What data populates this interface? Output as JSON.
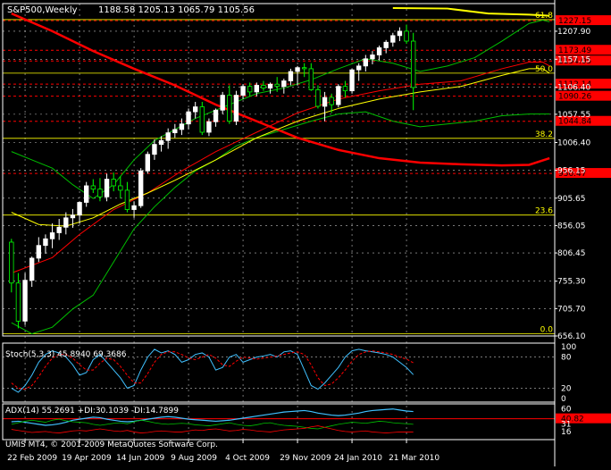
{
  "header": {
    "symbol": "S&P500,Weekly",
    "ohlc": "1188.58 1205.13 1065.79 1105.56"
  },
  "copyright": "UMIS MT4, © 2001-2009 MetaQuotes Software Corp.",
  "colors": {
    "background": "#000000",
    "grid": "#c0c0c0",
    "bull": "#ffffff",
    "bear": "#00ff00",
    "sma_red": "#ff0000",
    "sma_yellow": "#ffff00",
    "bands": "#00c000",
    "fib": "#ffff00",
    "level_line": "#ff0000",
    "price_tag_bg": "#ff0000",
    "stoch_main": "#40c0ff",
    "stoch_signal": "#ff0000",
    "adx": "#40c0ff"
  },
  "chart_data": [
    {
      "type": "candlestick",
      "panel": "main",
      "title": "S&P500,Weekly",
      "y_ticks": [
        "1207.90",
        "1157.15",
        "1106.40",
        "1057.55",
        "1006.40",
        "956.15",
        "905.65",
        "856.05",
        "806.45",
        "755.30",
        "705.70",
        "656.10"
      ],
      "ylim": [
        656.1,
        1258
      ],
      "x_ticks": [
        "22 Feb 2009",
        "19 Apr 2009",
        "14 Jun 2009",
        "9 Aug 2009",
        "4 Oct 2009",
        "29 Nov 2009",
        "24 Jan 2010",
        "21 Mar 2010"
      ],
      "fib_levels": [
        {
          "label": "61.8",
          "value": 1229
        },
        {
          "label": "50.0",
          "value": 1132
        },
        {
          "label": "38.2",
          "value": 1014
        },
        {
          "label": "23.6",
          "value": 875
        },
        {
          "label": "0.0",
          "value": 660
        }
      ],
      "horizontal_levels": [
        {
          "label": "1227.15",
          "value": 1227.15
        },
        {
          "label": "1173.49",
          "value": 1173.49
        },
        {
          "label": "1154.05",
          "value": 1154.05
        },
        {
          "label": "1112.14",
          "value": 1112.14
        },
        {
          "label": "1090.26",
          "value": 1090.26
        },
        {
          "label": "1044.84",
          "value": 1044.84
        },
        {
          "label": "950.47",
          "value": 950.47
        }
      ],
      "candles": [
        [
          826,
          832,
          735,
          752
        ],
        [
          752,
          770,
          670,
          683
        ],
        [
          683,
          770,
          676,
          757
        ],
        [
          757,
          800,
          745,
          797
        ],
        [
          797,
          835,
          790,
          820
        ],
        [
          820,
          840,
          805,
          832
        ],
        [
          832,
          860,
          815,
          843
        ],
        [
          843,
          868,
          830,
          853
        ],
        [
          853,
          880,
          840,
          870
        ],
        [
          870,
          886,
          852,
          875
        ],
        [
          875,
          900,
          860,
          898
        ],
        [
          898,
          935,
          890,
          928
        ],
        [
          928,
          940,
          915,
          922
        ],
        [
          922,
          942,
          900,
          908
        ],
        [
          908,
          950,
          900,
          940
        ],
        [
          940,
          952,
          918,
          928
        ],
        [
          928,
          945,
          905,
          920
        ],
        [
          920,
          935,
          880,
          885
        ],
        [
          885,
          900,
          870,
          892
        ],
        [
          892,
          960,
          888,
          955
        ],
        [
          955,
          990,
          950,
          985
        ],
        [
          985,
          1012,
          975,
          1003
        ],
        [
          1003,
          1018,
          990,
          1010
        ],
        [
          1010,
          1032,
          995,
          1024
        ],
        [
          1024,
          1040,
          1015,
          1030
        ],
        [
          1030,
          1050,
          1020,
          1040
        ],
        [
          1040,
          1068,
          1030,
          1062
        ],
        [
          1062,
          1080,
          1050,
          1071
        ],
        [
          1071,
          1080,
          1020,
          1025
        ],
        [
          1025,
          1050,
          1018,
          1044
        ],
        [
          1044,
          1068,
          1035,
          1065
        ],
        [
          1065,
          1098,
          1058,
          1092
        ],
        [
          1092,
          1110,
          1040,
          1045
        ],
        [
          1045,
          1100,
          1038,
          1092
        ],
        [
          1092,
          1112,
          1085,
          1108
        ],
        [
          1108,
          1115,
          1090,
          1098
        ],
        [
          1098,
          1115,
          1090,
          1110
        ],
        [
          1110,
          1118,
          1100,
          1105
        ],
        [
          1105,
          1115,
          1095,
          1112
        ],
        [
          1112,
          1125,
          1098,
          1108
        ],
        [
          1108,
          1122,
          1095,
          1118
        ],
        [
          1118,
          1140,
          1110,
          1135
        ],
        [
          1135,
          1145,
          1110,
          1142
        ],
        [
          1142,
          1150,
          1125,
          1140
        ],
        [
          1140,
          1150,
          1100,
          1102
        ],
        [
          1102,
          1110,
          1068,
          1072
        ],
        [
          1072,
          1098,
          1045,
          1088
        ],
        [
          1088,
          1095,
          1060,
          1075
        ],
        [
          1075,
          1112,
          1070,
          1108
        ],
        [
          1108,
          1118,
          1088,
          1100
        ],
        [
          1100,
          1140,
          1095,
          1138
        ],
        [
          1138,
          1150,
          1118,
          1145
        ],
        [
          1145,
          1165,
          1135,
          1158
        ],
        [
          1158,
          1172,
          1148,
          1165
        ],
        [
          1165,
          1182,
          1155,
          1178
        ],
        [
          1178,
          1192,
          1168,
          1188
        ],
        [
          1188,
          1205,
          1180,
          1200
        ],
        [
          1200,
          1215,
          1190,
          1208
        ],
        [
          1208,
          1220,
          1185,
          1190
        ],
        [
          1190,
          1205,
          1065,
          1106
        ]
      ],
      "sma_red_long": [
        [
          0,
          1240
        ],
        [
          6,
          1208
        ],
        [
          12,
          1172
        ],
        [
          18,
          1140
        ],
        [
          24,
          1110
        ],
        [
          30,
          1075
        ],
        [
          36,
          1045
        ],
        [
          42,
          1015
        ],
        [
          48,
          993
        ],
        [
          54,
          978
        ],
        [
          60,
          970
        ],
        [
          66,
          967
        ],
        [
          72,
          965
        ],
        [
          76,
          966
        ],
        [
          79,
          978
        ]
      ],
      "sma_red_short": [
        [
          0,
          770
        ],
        [
          6,
          798
        ],
        [
          10,
          840
        ],
        [
          15,
          885
        ],
        [
          20,
          915
        ],
        [
          25,
          955
        ],
        [
          30,
          990
        ],
        [
          36,
          1025
        ],
        [
          42,
          1060
        ],
        [
          48,
          1085
        ],
        [
          54,
          1100
        ],
        [
          60,
          1112
        ],
        [
          66,
          1118
        ],
        [
          72,
          1140
        ],
        [
          76,
          1152
        ],
        [
          78,
          1152
        ],
        [
          79,
          1145
        ]
      ],
      "sma_yellow": [
        [
          0,
          880
        ],
        [
          4,
          858
        ],
        [
          8,
          855
        ],
        [
          12,
          870
        ],
        [
          16,
          895
        ],
        [
          20,
          915
        ],
        [
          24,
          938
        ],
        [
          30,
          975
        ],
        [
          36,
          1015
        ],
        [
          42,
          1045
        ],
        [
          48,
          1068
        ],
        [
          54,
          1085
        ],
        [
          60,
          1098
        ],
        [
          66,
          1108
        ],
        [
          72,
          1128
        ],
        [
          76,
          1140
        ],
        [
          78,
          1140
        ],
        [
          79,
          1132
        ]
      ],
      "band_upper": [
        [
          0,
          990
        ],
        [
          3,
          975
        ],
        [
          6,
          960
        ],
        [
          9,
          930
        ],
        [
          12,
          905
        ],
        [
          15,
          930
        ],
        [
          18,
          975
        ],
        [
          21,
          1010
        ],
        [
          24,
          1030
        ],
        [
          27,
          1050
        ],
        [
          30,
          1065
        ],
        [
          33,
          1080
        ],
        [
          36,
          1095
        ],
        [
          40,
          1105
        ],
        [
          44,
          1120
        ],
        [
          48,
          1140
        ],
        [
          52,
          1158
        ],
        [
          56,
          1150
        ],
        [
          60,
          1135
        ],
        [
          64,
          1145
        ],
        [
          68,
          1160
        ],
        [
          72,
          1190
        ],
        [
          76,
          1222
        ],
        [
          78,
          1228
        ],
        [
          79,
          1225
        ]
      ],
      "band_lower": [
        [
          0,
          680
        ],
        [
          3,
          660
        ],
        [
          6,
          672
        ],
        [
          9,
          705
        ],
        [
          12,
          730
        ],
        [
          15,
          790
        ],
        [
          18,
          850
        ],
        [
          21,
          890
        ],
        [
          24,
          925
        ],
        [
          27,
          955
        ],
        [
          30,
          975
        ],
        [
          33,
          1000
        ],
        [
          36,
          1015
        ],
        [
          40,
          1030
        ],
        [
          44,
          1045
        ],
        [
          48,
          1058
        ],
        [
          52,
          1062
        ],
        [
          56,
          1045
        ],
        [
          60,
          1035
        ],
        [
          64,
          1040
        ],
        [
          68,
          1045
        ],
        [
          72,
          1055
        ],
        [
          76,
          1058
        ],
        [
          79,
          1058
        ]
      ],
      "ma_200": [
        [
          56,
          1250
        ],
        [
          64,
          1249
        ],
        [
          70,
          1240
        ],
        [
          76,
          1238
        ],
        [
          79,
          1236
        ]
      ]
    },
    {
      "type": "line",
      "panel": "stochastic",
      "title": "Stoch(5,3,3) 45.8940 69.3686",
      "y_ticks": [
        "100",
        "80",
        "20",
        "0"
      ],
      "ylim": [
        0,
        100
      ],
      "series": [
        {
          "values": [
            20,
            12,
            25,
            45,
            70,
            85,
            92,
            88,
            80,
            65,
            45,
            50,
            75,
            85,
            70,
            55,
            40,
            20,
            25,
            55,
            80,
            95,
            88,
            92,
            85,
            70,
            75,
            85,
            88,
            80,
            55,
            60,
            80,
            85,
            70,
            75,
            80,
            82,
            85,
            80,
            90,
            92,
            85,
            55,
            25,
            18,
            30,
            45,
            60,
            80,
            92,
            95,
            92,
            90,
            88,
            85,
            80,
            70,
            60,
            46
          ]
        },
        {
          "values": [
            30,
            20,
            18,
            25,
            42,
            62,
            78,
            85,
            85,
            78,
            65,
            55,
            55,
            68,
            78,
            75,
            62,
            45,
            30,
            30,
            48,
            70,
            85,
            90,
            90,
            85,
            78,
            75,
            80,
            85,
            78,
            65,
            62,
            72,
            80,
            78,
            76,
            78,
            80,
            82,
            85,
            88,
            90,
            85,
            65,
            40,
            25,
            28,
            40,
            55,
            72,
            85,
            90,
            92,
            90,
            88,
            85,
            80,
            76,
            69
          ]
        }
      ]
    },
    {
      "type": "line",
      "panel": "adx",
      "title": "ADX(14) 55.2691 +DI:30.1039 -DI:14.7899",
      "y_ticks": [
        "60",
        "40.82",
        "31",
        "16"
      ],
      "ylim": [
        0,
        70
      ],
      "series": [
        {
          "values": [
            35,
            36,
            34,
            32,
            30,
            28,
            29,
            31,
            34,
            38,
            40,
            42,
            44,
            43,
            40,
            38,
            36,
            35,
            36,
            38,
            40,
            42,
            44,
            45,
            44,
            42,
            40,
            39,
            38,
            37,
            36,
            37,
            38,
            40,
            42,
            44,
            46,
            48,
            50,
            52,
            54,
            55,
            56,
            57,
            55,
            52,
            50,
            48,
            47,
            48,
            50,
            52,
            55,
            57,
            58,
            59,
            60,
            58,
            56,
            55
          ]
        },
        {
          "values": [
            30,
            33,
            36,
            38,
            36,
            34,
            38,
            40,
            37,
            35,
            34,
            33,
            30,
            28,
            30,
            32,
            33,
            31,
            35,
            38,
            36,
            33,
            31,
            30,
            31,
            32,
            31,
            29,
            28,
            27,
            29,
            31,
            33,
            30,
            28,
            27,
            29,
            32,
            33,
            30,
            28,
            27,
            26,
            24,
            22,
            21,
            24,
            27,
            30,
            32,
            34,
            33,
            32,
            34,
            36,
            35,
            33,
            32,
            31,
            30
          ]
        },
        {
          "values": [
            20,
            18,
            16,
            14,
            15,
            16,
            14,
            13,
            15,
            17,
            18,
            17,
            19,
            21,
            19,
            17,
            16,
            18,
            15,
            13,
            14,
            16,
            17,
            16,
            15,
            15,
            17,
            19,
            18,
            20,
            21,
            19,
            17,
            18,
            20,
            19,
            17,
            16,
            15,
            17,
            19,
            20,
            21,
            22,
            25,
            27,
            24,
            21,
            18,
            16,
            15,
            16,
            17,
            15,
            14,
            13,
            14,
            15,
            15,
            15
          ]
        }
      ]
    }
  ]
}
